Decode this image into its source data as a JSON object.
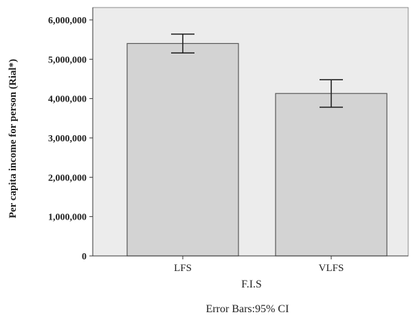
{
  "chart_data": {
    "type": "bar",
    "categories": [
      "LFS",
      "VLFS"
    ],
    "values": [
      5400000,
      4130000
    ],
    "error_bars": {
      "label": "Error Bars:95% CI",
      "lower": [
        5160000,
        3780000
      ],
      "upper": [
        5640000,
        4480000
      ]
    },
    "xlabel": "F.I.S",
    "ylabel": "Per capita income for person (Rial*)",
    "ylim": [
      0,
      6000000
    ],
    "yticks": [
      0,
      1000000,
      2000000,
      3000000,
      4000000,
      5000000,
      6000000
    ],
    "ytick_labels": [
      "0",
      "1,000,000",
      "2,000,000",
      "3,000,000",
      "4,000,000",
      "5,000,000",
      "6,000,000"
    ],
    "grid": false,
    "colors": {
      "plot_background": "#ececec",
      "bar_fill": "#d3d3d3",
      "bar_stroke": "#555555",
      "error_bar": "#222222"
    }
  }
}
